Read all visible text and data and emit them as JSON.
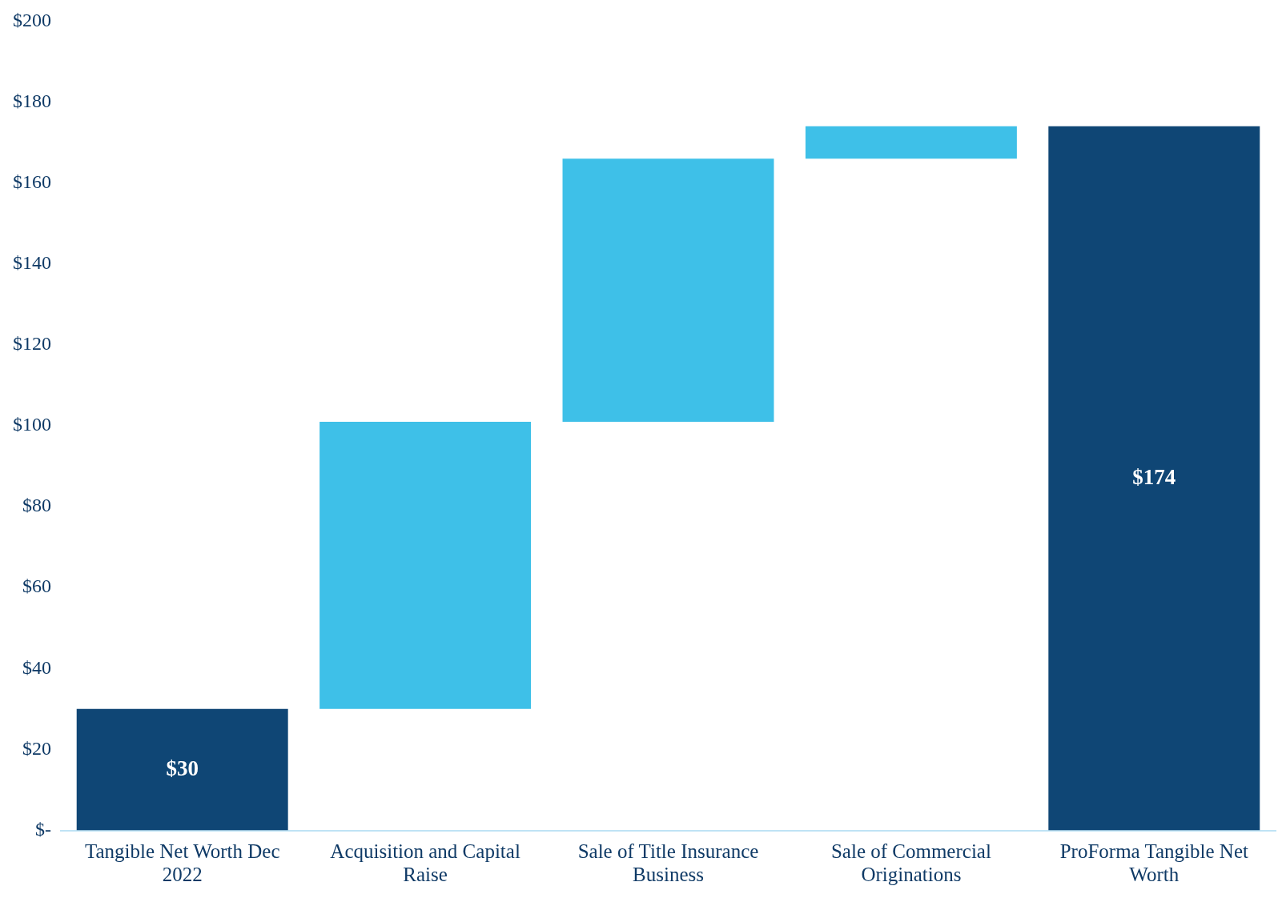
{
  "chart_data": {
    "type": "bar",
    "categories": [
      "Tangible Net Worth Dec 2022",
      "Acquisition and Capital Raise",
      "Sale of Title Insurance Business",
      "Sale of Commercial Originations",
      "ProForma Tangible Net Worth"
    ],
    "values": [
      30,
      71,
      65,
      8,
      174
    ],
    "base": [
      0,
      30,
      101,
      166,
      0
    ],
    "colors": [
      "#0f4675",
      "#3ec0e8",
      "#3ec0e8",
      "#3ec0e8",
      "#0f4675"
    ],
    "value_labels": [
      "$30",
      null,
      null,
      null,
      "$174"
    ],
    "ylim": [
      0,
      200
    ],
    "yticks": [
      {
        "value": 0,
        "label": "$-"
      },
      {
        "value": 20,
        "label": "$20"
      },
      {
        "value": 40,
        "label": "$40"
      },
      {
        "value": 60,
        "label": "$60"
      },
      {
        "value": 80,
        "label": "$80"
      },
      {
        "value": 100,
        "label": "$100"
      },
      {
        "value": 120,
        "label": "$120"
      },
      {
        "value": 140,
        "label": "$140"
      },
      {
        "value": 160,
        "label": "$160"
      },
      {
        "value": 180,
        "label": "$180"
      },
      {
        "value": 200,
        "label": "$200"
      }
    ],
    "grid": false,
    "legend": false
  }
}
